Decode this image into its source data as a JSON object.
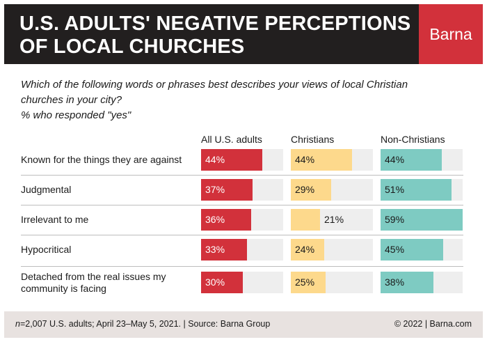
{
  "header": {
    "title_line1": "U.S. ADULTS' NEGATIVE PERCEPTIONS",
    "title_line2": "OF LOCAL CHURCHES",
    "brand": "Barna"
  },
  "question": {
    "line1": "Which of the following words or phrases best describes your views of local Christian",
    "line2": "churches in your city?",
    "line3": "% who responded \"yes\""
  },
  "footer": {
    "n_label": "n",
    "source": "=2,007 U.S. adults; April 23–May 5, 2021. | Source: Barna Group",
    "copyright": "© 2022 |   Barna.com"
  },
  "colors": {
    "all_adults": "#d2313b",
    "christians": "#fdd98c",
    "non_christians": "#7ecbc2",
    "track": "#eeeeee",
    "header_bg": "#221f1f",
    "brand_bg": "#d2313b",
    "footer_bg": "#e8e2e0"
  },
  "chart_data": {
    "type": "bar",
    "orientation": "horizontal",
    "categories": [
      "Known for the things they are against",
      "Judgmental",
      "Irrelevant to me",
      "Hypocritical",
      "Detached from the real issues my community is facing"
    ],
    "category_lines": [
      [
        "Known for the things they are against"
      ],
      [
        "Judgmental"
      ],
      [
        "Irrelevant to me"
      ],
      [
        "Hypocritical"
      ],
      [
        "Detached from the real issues my",
        "community is facing"
      ]
    ],
    "series": [
      {
        "name": "All U.S. adults",
        "values": [
          44,
          37,
          36,
          33,
          30
        ],
        "labels": [
          "44%",
          "37%",
          "36%",
          "33%",
          "30%"
        ]
      },
      {
        "name": "Christians",
        "values": [
          44,
          29,
          21,
          24,
          25
        ],
        "labels": [
          "44%",
          "29%",
          "21%",
          "24%",
          "25%"
        ]
      },
      {
        "name": "Non-Christians",
        "values": [
          44,
          51,
          59,
          45,
          38
        ],
        "labels": [
          "44%",
          "51%",
          "59%",
          "45%",
          "38%"
        ]
      }
    ],
    "xlim": [
      0,
      59
    ],
    "unit": "%",
    "grid": false
  }
}
